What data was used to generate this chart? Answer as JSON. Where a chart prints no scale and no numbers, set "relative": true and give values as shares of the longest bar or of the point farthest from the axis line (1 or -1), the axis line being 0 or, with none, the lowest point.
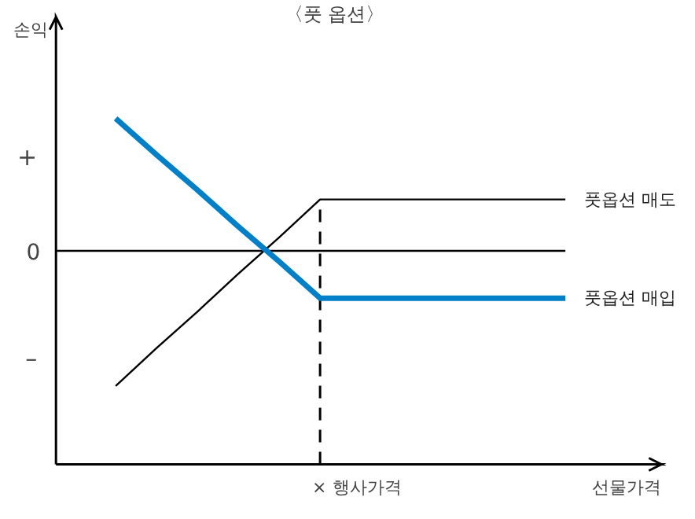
{
  "chart_data": {
    "type": "line",
    "relative": true,
    "title": "〈풋 옵션〉",
    "ylabel": "손익",
    "categories": [
      null,
      null,
      null,
      null,
      null,
      null,
      null,
      null,
      null,
      null,
      null,
      null
    ],
    "series": [
      {
        "name": "풋옵션 매도",
        "color": "#000000",
        "values": [
          -1,
          -0.72,
          -0.45,
          -0.17,
          0.1,
          0.38,
          0.38,
          0.38,
          0.38,
          0.38,
          0.38,
          0.38
        ]
      },
      {
        "name": "풋옵션 매입",
        "color": "#0080c8",
        "values": [
          0.98,
          0.71,
          0.45,
          0.18,
          -0.08,
          -0.35,
          -0.35,
          -0.35,
          -0.35,
          -0.35,
          -0.35,
          -0.35
        ]
      }
    ],
    "ref_lines": [
      {
        "axis": "y",
        "value": 0,
        "label": "0",
        "color": "#000000"
      }
    ],
    "annotations": [
      "+",
      "–",
      "× 행사가격",
      "선물가격"
    ],
    "grid": false
  }
}
